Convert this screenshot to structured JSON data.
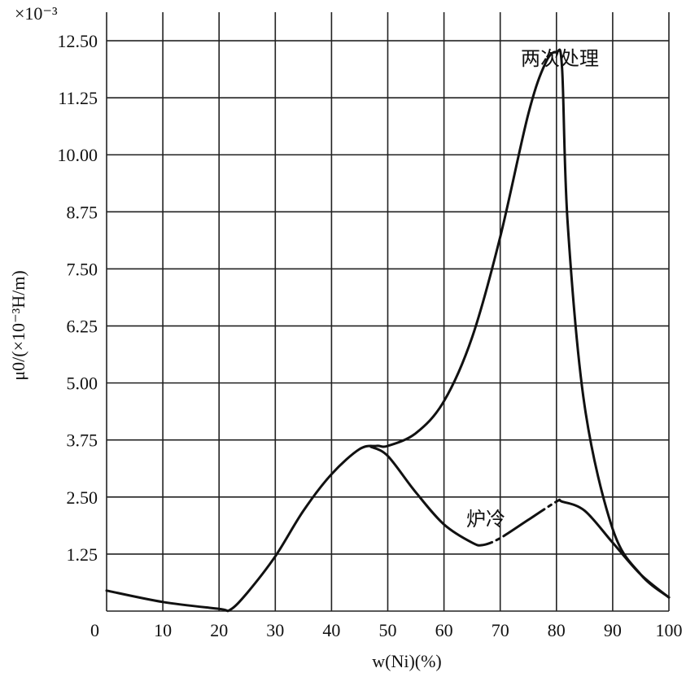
{
  "chart_data": {
    "type": "line",
    "title": "",
    "xlabel": "w(Ni)(%)",
    "ylabel": "μ0/(×10⁻³H/m)",
    "y_multiplier": "×10⁻³",
    "xlim": [
      0,
      100
    ],
    "ylim": [
      0,
      13.125
    ],
    "x_ticks": [
      0,
      10,
      20,
      30,
      40,
      50,
      60,
      70,
      80,
      90,
      100
    ],
    "x_tick_labels": [
      "0",
      "10",
      "20",
      "30",
      "40",
      "50",
      "60",
      "70",
      "80",
      "90",
      "100"
    ],
    "y_ticks": [
      1.25,
      2.5,
      3.75,
      5.0,
      6.25,
      7.5,
      8.75,
      10.0,
      11.25,
      12.5
    ],
    "y_tick_labels": [
      "1.25",
      "2.50",
      "3.75",
      "5.00",
      "6.25",
      "7.50",
      "8.75",
      "10.00",
      "11.25",
      "12.50"
    ],
    "grid": true,
    "series": [
      {
        "name": "两次处理",
        "style": "solid",
        "x": [
          0,
          10,
          20,
          22,
          25,
          30,
          35,
          40,
          45,
          48,
          50,
          55,
          60,
          65,
          70,
          75,
          78,
          80,
          81,
          82,
          85,
          90,
          95,
          100
        ],
        "y": [
          0.45,
          0.2,
          0.05,
          0.03,
          0.4,
          1.2,
          2.2,
          3.0,
          3.55,
          3.62,
          3.62,
          3.9,
          4.6,
          6.0,
          8.2,
          10.9,
          12.0,
          12.25,
          11.9,
          8.5,
          4.5,
          1.8,
          0.8,
          0.3
        ]
      },
      {
        "name": "炉冷",
        "style": "dash-dot",
        "x": [
          47,
          50,
          55,
          60,
          65,
          67,
          70,
          75,
          80,
          81,
          85,
          90,
          95,
          100
        ],
        "y": [
          3.6,
          3.4,
          2.6,
          1.9,
          1.5,
          1.45,
          1.6,
          2.0,
          2.4,
          2.4,
          2.2,
          1.5,
          0.8,
          0.3
        ]
      }
    ],
    "annotations": [
      {
        "text": "两次处理",
        "near_series": "两次处理"
      },
      {
        "text": "炉冷",
        "near_series": "炉冷"
      }
    ]
  }
}
